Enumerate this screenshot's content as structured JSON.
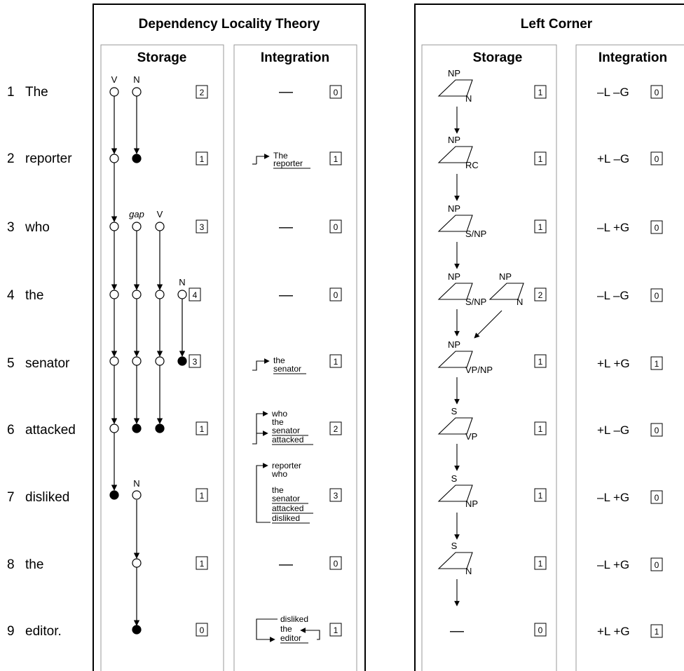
{
  "words": [
    {
      "n": "1",
      "w": "The"
    },
    {
      "n": "2",
      "w": "reporter"
    },
    {
      "n": "3",
      "w": "who"
    },
    {
      "n": "4",
      "w": "the"
    },
    {
      "n": "5",
      "w": "senator"
    },
    {
      "n": "6",
      "w": "attacked"
    },
    {
      "n": "7",
      "w": "disliked"
    },
    {
      "n": "8",
      "w": "the"
    },
    {
      "n": "9",
      "w": "editor."
    }
  ],
  "dlt": {
    "title": "Dependency Locality Theory",
    "storage_header": "Storage",
    "integration_header": "Integration",
    "storage_labels": {
      "v": "V",
      "n": "N",
      "gap": "gap",
      "v2": "V",
      "n4": "N",
      "n7": "N"
    },
    "storage_costs": [
      "2",
      "1",
      "3",
      "4",
      "3",
      "1",
      "1",
      "1",
      "0"
    ],
    "integration_costs": [
      "0",
      "1",
      "0",
      "0",
      "1",
      "2",
      "3",
      "0",
      "1"
    ],
    "integration_text": {
      "dash": "—",
      "r2": [
        "The",
        "reporter"
      ],
      "r5": [
        "the",
        "senator"
      ],
      "r6": [
        "who",
        "the",
        "senator",
        "attacked"
      ],
      "r7": [
        "reporter",
        "who",
        "the",
        "senator",
        "attacked",
        "disliked"
      ],
      "r9": [
        "disliked",
        "the",
        "editor"
      ]
    }
  },
  "lc": {
    "title": "Left Corner",
    "storage_header": "Storage",
    "integration_header": "Integration",
    "storage_costs": [
      "1",
      "1",
      "1",
      "2",
      "1",
      "1",
      "1",
      "1",
      "0"
    ],
    "tree_tops": [
      "NP",
      "NP",
      "NP",
      "NP",
      "NP",
      "S",
      "S",
      "S"
    ],
    "tree_corners": [
      "N",
      "RC",
      "S/NP",
      "S/NP",
      "VP/NP",
      "VP",
      "NP",
      "N"
    ],
    "row4_extra": {
      "top": "NP",
      "corner": "N"
    },
    "row9_dash": "—",
    "integration_labels": [
      "–L –G",
      "+L –G",
      "–L +G",
      "–L –G",
      "+L +G",
      "+L –G",
      "–L +G",
      "–L +G",
      "+L +G"
    ],
    "integration_costs": [
      "0",
      "0",
      "0",
      "0",
      "1",
      "0",
      "0",
      "0",
      "1"
    ]
  }
}
